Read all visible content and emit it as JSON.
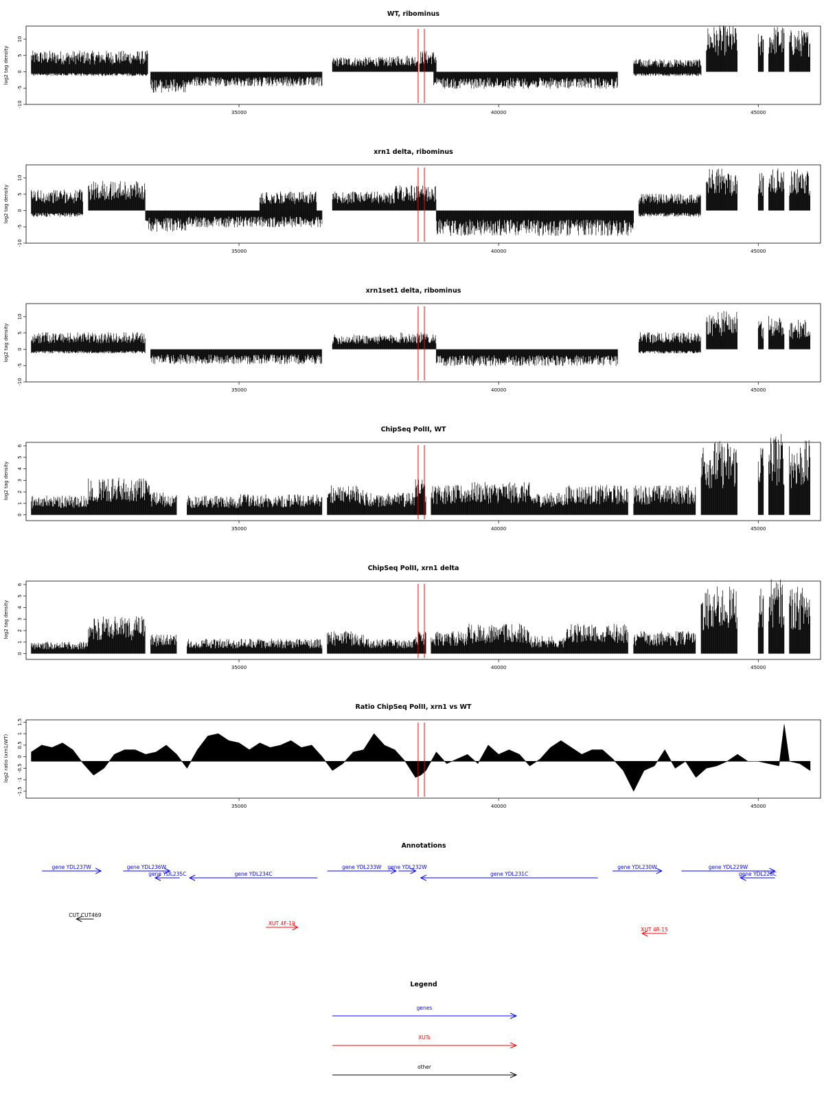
{
  "colors": {
    "gene": "#0000ff",
    "xut": "#ff0000",
    "other": "#000000",
    "marker": "#ff0000",
    "signal": "#000000"
  },
  "chart_data": [
    {
      "type": "bar",
      "title": "WT, ribominus",
      "ylabel": "log2 tag density",
      "xlim": [
        30900,
        46200
      ],
      "ylim": [
        -10,
        14
      ],
      "xticks": [
        35000,
        40000,
        45000
      ],
      "yticks": [
        -10,
        -5,
        0,
        5,
        10
      ],
      "markers_x": [
        38450,
        38570
      ],
      "series": [
        {
          "strand": "+",
          "segments": [
            [
              31000,
              33250,
              5
            ],
            [
              36800,
              38000,
              3.5
            ],
            [
              38000,
              38450,
              4
            ],
            [
              38480,
              38800,
              5
            ],
            [
              42600,
              43900,
              3
            ],
            [
              44000,
              44600,
              11
            ],
            [
              45000,
              45100,
              9
            ],
            [
              45200,
              45500,
              11
            ],
            [
              45600,
              46000,
              10
            ]
          ]
        },
        {
          "strand": "-",
          "segments": [
            [
              31000,
              33250,
              -1
            ],
            [
              33300,
              34000,
              -5
            ],
            [
              34000,
              36600,
              -3.5
            ],
            [
              38750,
              42300,
              -4
            ],
            [
              42600,
              43900,
              -1
            ]
          ]
        }
      ]
    },
    {
      "type": "bar",
      "title": "xrn1 delta, ribominus",
      "ylabel": "log2 tag density",
      "xlim": [
        30900,
        46200
      ],
      "ylim": [
        -10,
        14
      ],
      "xticks": [
        35000,
        40000,
        45000
      ],
      "yticks": [
        -10,
        -5,
        0,
        5,
        10
      ],
      "markers_x": [
        38450,
        38570
      ],
      "series": [
        {
          "strand": "+",
          "segments": [
            [
              31000,
              32000,
              5
            ],
            [
              32100,
              33200,
              7
            ],
            [
              35400,
              36500,
              4.5
            ],
            [
              36800,
              38000,
              4.5
            ],
            [
              38000,
              38800,
              6
            ],
            [
              42700,
              43900,
              4
            ],
            [
              44000,
              44600,
              10
            ],
            [
              45000,
              45100,
              9
            ],
            [
              45200,
              45500,
              10
            ],
            [
              45600,
              46000,
              10
            ]
          ]
        },
        {
          "strand": "-",
          "segments": [
            [
              31000,
              32000,
              -1.5
            ],
            [
              33200,
              34000,
              -5
            ],
            [
              34000,
              36600,
              -4
            ],
            [
              38800,
              42600,
              -6
            ],
            [
              42700,
              43900,
              -1.5
            ]
          ]
        }
      ]
    },
    {
      "type": "bar",
      "title": "xrn1set1 delta, ribominus",
      "ylabel": "log2 tag density",
      "xlim": [
        30900,
        46200
      ],
      "ylim": [
        -10,
        14
      ],
      "xticks": [
        35000,
        40000,
        45000
      ],
      "yticks": [
        -10,
        -5,
        0,
        5,
        10
      ],
      "markers_x": [
        38450,
        38570
      ],
      "series": [
        {
          "strand": "+",
          "segments": [
            [
              31000,
              33200,
              4
            ],
            [
              36800,
              38000,
              3.5
            ],
            [
              38000,
              38800,
              4
            ],
            [
              42700,
              43900,
              4
            ],
            [
              44000,
              44600,
              9
            ],
            [
              45000,
              45100,
              7
            ],
            [
              45200,
              45500,
              8
            ],
            [
              45600,
              46000,
              7
            ]
          ]
        },
        {
          "strand": "-",
          "segments": [
            [
              31000,
              33200,
              -1
            ],
            [
              33300,
              36600,
              -3.5
            ],
            [
              38800,
              42300,
              -4
            ],
            [
              42700,
              43900,
              -1
            ]
          ]
        }
      ]
    },
    {
      "type": "bar",
      "title": "ChipSeq PolII, WT",
      "ylabel": "log2 tag density",
      "xlim": [
        30900,
        46200
      ],
      "ylim": [
        -0.5,
        6.3
      ],
      "xticks": [
        35000,
        40000,
        45000
      ],
      "yticks": [
        0,
        1,
        2,
        3,
        4,
        5,
        6
      ],
      "markers_x": [
        38450,
        38570
      ],
      "series": [
        {
          "strand": "+",
          "segments": [
            [
              31000,
              32100,
              1.3
            ],
            [
              32100,
              33300,
              2.5
            ],
            [
              33300,
              33800,
              1.5
            ],
            [
              34000,
              35000,
              1.3
            ],
            [
              35000,
              36600,
              1.4
            ],
            [
              36700,
              37400,
              2
            ],
            [
              37400,
              38400,
              1.5
            ],
            [
              38400,
              38600,
              2.5
            ],
            [
              38700,
              39400,
              2
            ],
            [
              39400,
              40600,
              2.2
            ],
            [
              40600,
              41300,
              1.5
            ],
            [
              41300,
              42500,
              2
            ],
            [
              42600,
              43800,
              2
            ],
            [
              43900,
              44600,
              5
            ],
            [
              45000,
              45100,
              5
            ],
            [
              45200,
              45500,
              5.5
            ],
            [
              45600,
              46000,
              5
            ]
          ]
        }
      ]
    },
    {
      "type": "bar",
      "title": "ChipSeq PolII, xrn1 delta",
      "ylabel": "log2 tag density",
      "xlim": [
        30900,
        46200
      ],
      "ylim": [
        -0.5,
        6.3
      ],
      "xticks": [
        35000,
        40000,
        45000
      ],
      "yticks": [
        0,
        1,
        2,
        3,
        4,
        5,
        6
      ],
      "markers_x": [
        38450,
        38570
      ],
      "series": [
        {
          "strand": "+",
          "segments": [
            [
              31000,
              32100,
              0.8
            ],
            [
              32100,
              33200,
              2.5
            ],
            [
              33300,
              33800,
              1.3
            ],
            [
              34000,
              36600,
              1
            ],
            [
              36700,
              37400,
              1.5
            ],
            [
              37400,
              38400,
              1
            ],
            [
              38400,
              38600,
              1.5
            ],
            [
              38700,
              39400,
              1.5
            ],
            [
              39400,
              40600,
              2
            ],
            [
              40600,
              41300,
              1.2
            ],
            [
              41300,
              42500,
              2
            ],
            [
              42600,
              43800,
              1.5
            ],
            [
              43900,
              44600,
              4.5
            ],
            [
              45000,
              45100,
              4.5
            ],
            [
              45200,
              45500,
              5
            ],
            [
              45600,
              46000,
              4.5
            ]
          ]
        }
      ]
    },
    {
      "type": "area",
      "title": "Ratio ChipSeq PolII, xrn1 vs WT",
      "ylabel": "log2 ratio (xrn1/WT)",
      "xlim": [
        30900,
        46200
      ],
      "ylim": [
        -1.8,
        1.6
      ],
      "xticks": [
        35000,
        40000,
        45000
      ],
      "yticks": [
        -1.5,
        -1,
        -0.5,
        0,
        0.5,
        1,
        1.5
      ],
      "markers_x": [
        38450,
        38570
      ],
      "baseline": -0.2,
      "x": [
        31000,
        31200,
        31400,
        31600,
        31800,
        32000,
        32200,
        32400,
        32600,
        32800,
        33000,
        33200,
        33400,
        33600,
        33800,
        34000,
        34200,
        34400,
        34600,
        34800,
        35000,
        35200,
        35400,
        35600,
        35800,
        36000,
        36200,
        36400,
        36600,
        36800,
        37000,
        37200,
        37400,
        37600,
        37800,
        38000,
        38200,
        38400,
        38500,
        38600,
        38800,
        39000,
        39200,
        39400,
        39600,
        39800,
        40000,
        40200,
        40400,
        40600,
        40800,
        41000,
        41200,
        41400,
        41600,
        41800,
        42000,
        42200,
        42400,
        42600,
        42800,
        43000,
        43200,
        43400,
        43600,
        43800,
        44000,
        44200,
        44400,
        44600,
        44800,
        45000,
        45200,
        45400,
        45500,
        45600,
        45800,
        46000
      ],
      "y": [
        0.2,
        0.5,
        0.4,
        0.6,
        0.3,
        -0.3,
        -0.8,
        -0.5,
        0.1,
        0.3,
        0.3,
        0.1,
        0.2,
        0.5,
        0.1,
        -0.5,
        0.3,
        0.9,
        1.0,
        0.7,
        0.6,
        0.3,
        0.6,
        0.4,
        0.5,
        0.7,
        0.4,
        0.5,
        0.0,
        -0.6,
        -0.3,
        0.2,
        0.3,
        1.0,
        0.5,
        0.3,
        -0.2,
        -0.9,
        -0.8,
        -0.6,
        0.2,
        -0.3,
        -0.1,
        0.1,
        -0.3,
        0.5,
        0.1,
        0.3,
        0.1,
        -0.4,
        -0.1,
        0.4,
        0.7,
        0.4,
        0.1,
        0.3,
        0.3,
        -0.1,
        -0.6,
        -1.5,
        -0.6,
        -0.4,
        0.3,
        -0.5,
        -0.2,
        -0.9,
        -0.5,
        -0.4,
        -0.2,
        0.1,
        -0.2,
        -0.2,
        -0.3,
        -0.4,
        1.4,
        -0.2,
        -0.3,
        -0.6
      ]
    },
    {
      "type": "table",
      "title": "Annotations",
      "xlim": [
        30900,
        46200
      ],
      "features": [
        {
          "label": "gene YDL237W",
          "class": "gene",
          "start": 31000,
          "end": 32200,
          "strand": "+",
          "row": 0
        },
        {
          "label": "gene YDL236W",
          "class": "gene",
          "start": 32650,
          "end": 33600,
          "strand": "+",
          "row": 0
        },
        {
          "label": "gene YDL235C",
          "class": "gene",
          "start": 33300,
          "end": 33800,
          "strand": "-",
          "row": 1
        },
        {
          "label": "gene YDL234C",
          "class": "gene",
          "start": 34000,
          "end": 36600,
          "strand": "-",
          "row": 1
        },
        {
          "label": "gene YDL233W",
          "class": "gene",
          "start": 36800,
          "end": 38200,
          "strand": "+",
          "row": 0
        },
        {
          "label": "gene YDL232W",
          "class": "gene",
          "start": 38250,
          "end": 38600,
          "strand": "+",
          "row": 0
        },
        {
          "label": "gene YDL231C",
          "class": "gene",
          "start": 38700,
          "end": 42300,
          "strand": "-",
          "row": 1
        },
        {
          "label": "gene YDL230W",
          "class": "gene",
          "start": 42600,
          "end": 43600,
          "strand": "+",
          "row": 0
        },
        {
          "label": "gene YDL229W",
          "class": "gene",
          "start": 44000,
          "end": 45900,
          "strand": "+",
          "row": 0
        },
        {
          "label": "gene YDL228C",
          "class": "gene",
          "start": 45200,
          "end": 45900,
          "strand": "-",
          "row": 1
        },
        {
          "label": "CUT CUT469",
          "class": "other",
          "start": 31700,
          "end": 32050,
          "strand": "-",
          "row": 2
        },
        {
          "label": "XUT 4F-19",
          "class": "xut",
          "start": 35550,
          "end": 36200,
          "strand": "+",
          "row": 3
        },
        {
          "label": "XUT 4R-15",
          "class": "xut",
          "start": 43200,
          "end": 43700,
          "strand": "-",
          "row": 4
        }
      ]
    },
    {
      "type": "table",
      "title": "Legend",
      "entries": [
        {
          "label": "genes",
          "class": "gene"
        },
        {
          "label": "XUTs",
          "class": "xut"
        },
        {
          "label": "other",
          "class": "other"
        }
      ]
    }
  ]
}
